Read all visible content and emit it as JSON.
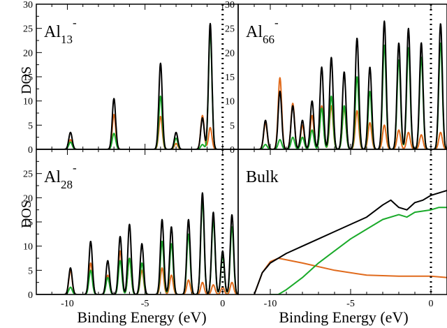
{
  "figure": {
    "ylabel_top": "DOS",
    "ylabel_bottom": "DOS",
    "xlabel_left": "Binding Energy (eV)",
    "xlabel_right": "Binding Energy (eV)"
  },
  "colors": {
    "total": "#000000",
    "p_like": "#1aaa2a",
    "s_like": "#e06a1c"
  },
  "chart_data": [
    {
      "type": "line",
      "title": "",
      "panel_label": {
        "base": "Al",
        "sub": "13",
        "sup": "-"
      },
      "xlim": [
        -12,
        1
      ],
      "ylim": [
        0,
        30
      ],
      "xticks": [
        "-10",
        "-5",
        "0"
      ],
      "yticks": [
        "0",
        "5",
        "10",
        "15",
        "20",
        "25",
        "30"
      ],
      "fermi_level": 0,
      "peaks": [
        {
          "x": -9.8,
          "total": 3.5,
          "s": 2.0,
          "p": 1.5
        },
        {
          "x": -7.0,
          "total": 10.5,
          "s": 7.2,
          "p": 3.3
        },
        {
          "x": -4.0,
          "total": 17.8,
          "s": 6.8,
          "p": 11.0
        },
        {
          "x": -3.0,
          "total": 3.5,
          "s": 1.2,
          "p": 2.3
        },
        {
          "x": -0.8,
          "total": 26.0,
          "s": 4.5,
          "p": 24.5
        },
        {
          "x": -1.3,
          "total": 6.5,
          "s": 7.0,
          "p": 1.0
        }
      ]
    },
    {
      "type": "line",
      "title": "",
      "panel_label": {
        "base": "Al",
        "sub": "66",
        "sup": "-"
      },
      "xlim": [
        -12,
        1
      ],
      "ylim": [
        0,
        30
      ],
      "xticks": [
        "-10",
        "-5",
        "0"
      ],
      "yticks": [
        "0",
        "5",
        "10",
        "15",
        "20",
        "25",
        "30"
      ],
      "fermi_level": 0,
      "peaks": [
        {
          "x": -10.3,
          "total": 6.0,
          "s": 5.5,
          "p": 1.0
        },
        {
          "x": -9.4,
          "total": 12.0,
          "s": 14.8,
          "p": 2.0
        },
        {
          "x": -8.6,
          "total": 9.0,
          "s": 9.5,
          "p": 2.5
        },
        {
          "x": -8.0,
          "total": 6.0,
          "s": 5.0,
          "p": 2.5
        },
        {
          "x": -7.4,
          "total": 10.0,
          "s": 7.0,
          "p": 4.0
        },
        {
          "x": -6.8,
          "total": 17.0,
          "s": 9.0,
          "p": 8.5
        },
        {
          "x": -6.2,
          "total": 19.0,
          "s": 9.0,
          "p": 11.0
        },
        {
          "x": -5.4,
          "total": 16.0,
          "s": 8.5,
          "p": 9.0
        },
        {
          "x": -4.6,
          "total": 23.0,
          "s": 8.0,
          "p": 15.0
        },
        {
          "x": -3.8,
          "total": 17.0,
          "s": 5.5,
          "p": 12.0
        },
        {
          "x": -2.9,
          "total": 26.5,
          "s": 5.0,
          "p": 21.5
        },
        {
          "x": -2.0,
          "total": 22.0,
          "s": 4.0,
          "p": 18.5
        },
        {
          "x": -1.4,
          "total": 25.0,
          "s": 3.5,
          "p": 21.0
        },
        {
          "x": -0.6,
          "total": 22.0,
          "s": 3.0,
          "p": 19.0
        },
        {
          "x": 0.6,
          "total": 26.0,
          "s": 3.5,
          "p": 22.0
        }
      ]
    },
    {
      "type": "line",
      "title": "",
      "panel_label": {
        "base": "Al",
        "sub": "28",
        "sup": "-"
      },
      "xlim": [
        -12,
        1
      ],
      "ylim": [
        0,
        30
      ],
      "xticks": [
        "-10",
        "-5",
        "0"
      ],
      "yticks": [
        "0",
        "5",
        "10",
        "15",
        "20",
        "25"
      ],
      "fermi_level": 0,
      "peaks": [
        {
          "x": -9.8,
          "total": 5.5,
          "s": 5.0,
          "p": 1.5
        },
        {
          "x": -8.5,
          "total": 11.0,
          "s": 6.5,
          "p": 5.0
        },
        {
          "x": -7.4,
          "total": 7.0,
          "s": 4.0,
          "p": 3.5
        },
        {
          "x": -6.6,
          "total": 12.0,
          "s": 9.0,
          "p": 7.0
        },
        {
          "x": -6.0,
          "total": 14.5,
          "s": 7.5,
          "p": 7.5
        },
        {
          "x": -5.2,
          "total": 10.5,
          "s": 5.0,
          "p": 6.5
        },
        {
          "x": -3.9,
          "total": 15.5,
          "s": 5.5,
          "p": 11.0
        },
        {
          "x": -3.3,
          "total": 14.0,
          "s": 4.0,
          "p": 10.5
        },
        {
          "x": -2.2,
          "total": 15.5,
          "s": 3.0,
          "p": 12.5
        },
        {
          "x": -1.3,
          "total": 21.0,
          "s": 2.5,
          "p": 19.5
        },
        {
          "x": -0.6,
          "total": 17.0,
          "s": 2.0,
          "p": 15.5
        },
        {
          "x": 0.0,
          "total": 9.0,
          "s": 1.5,
          "p": 8.0
        },
        {
          "x": 0.6,
          "total": 16.5,
          "s": 2.5,
          "p": 14.0
        }
      ]
    },
    {
      "type": "line",
      "title": "",
      "panel_label": {
        "base": "Bulk",
        "sub": "",
        "sup": ""
      },
      "xlim": [
        -12,
        1
      ],
      "ylim": [
        0,
        30
      ],
      "xticks": [
        "-10",
        "-5",
        "0"
      ],
      "yticks": [],
      "fermi_level": 0,
      "series": [
        {
          "name": "",
          "color_key": "total",
          "x": [
            -11.0,
            -10.5,
            -10.0,
            -9.5,
            -9.0,
            -8.0,
            -7.0,
            -6.0,
            -5.0,
            -4.0,
            -3.0,
            -2.5,
            -2.0,
            -1.5,
            -1.0,
            -0.5,
            0.0,
            0.5,
            1.0
          ],
          "y": [
            0.0,
            4.5,
            6.5,
            7.5,
            8.5,
            10.0,
            11.5,
            13.0,
            14.5,
            16.0,
            18.5,
            19.5,
            18.0,
            17.5,
            19.0,
            19.5,
            20.5,
            21.0,
            21.5
          ]
        },
        {
          "name": "",
          "color_key": "p_like",
          "x": [
            -10.0,
            -9.5,
            -9.0,
            -8.0,
            -7.0,
            -6.0,
            -5.0,
            -4.0,
            -3.0,
            -2.0,
            -1.5,
            -1.0,
            0.0,
            0.5,
            1.0
          ],
          "y": [
            0.0,
            0.0,
            1.0,
            3.5,
            6.5,
            9.0,
            11.5,
            13.5,
            15.5,
            16.5,
            16.0,
            17.0,
            17.5,
            18.0,
            18.0
          ]
        },
        {
          "name": "",
          "color_key": "s_like",
          "x": [
            -11.0,
            -10.5,
            -10.0,
            -9.5,
            -8.0,
            -6.0,
            -4.0,
            -2.0,
            0.0,
            1.0
          ],
          "y": [
            0.0,
            4.5,
            6.8,
            7.5,
            6.5,
            5.0,
            4.0,
            3.8,
            3.8,
            3.5
          ]
        }
      ]
    }
  ]
}
